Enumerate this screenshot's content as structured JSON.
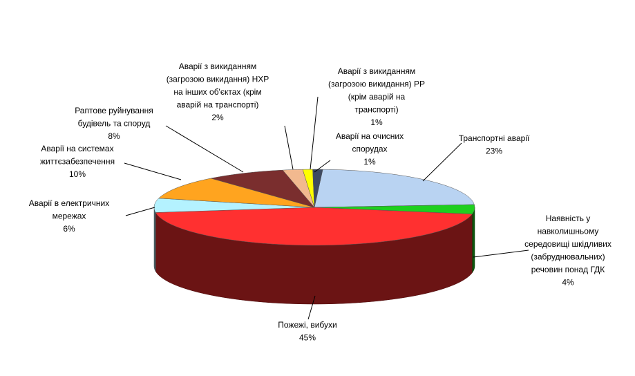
{
  "chart_data": {
    "type": "pie",
    "style": "3d",
    "categories": [
      "Транспортні аварії",
      "Наявність у\nнавколишньому\nсередовищі шкідливих\n(забруднювальних)\nречовин понад ГДК",
      "Пожежі, вибухи",
      "Аварії в електричних\nмережах",
      "Аварії на системах\nжиттєзабезпечення",
      "Раптове руйнування\nбудівель та споруд",
      "Аварії з викиданням\n(загрозою викидання) НХР\nна інших об'єктах (крім\nаварій на транспорті)",
      "Аварії з викиданням\n(загрозою викидання) РР\n(крім  аварій на\nтранспорті)",
      "Аварії на очисних\nспорудах"
    ],
    "values": [
      23,
      4,
      45,
      6,
      10,
      8,
      2,
      1,
      1
    ],
    "value_labels": [
      "23%",
      "4%",
      "45%",
      "6%",
      "10%",
      "8%",
      "2%",
      "1%",
      "1%"
    ],
    "colors": [
      "#b9d3f2",
      "#1ecf1e",
      "#ff3030",
      "#b4f2ff",
      "#ffa41f",
      "#7a2e2e",
      "#f2b98f",
      "#ffff00",
      "#3e4a62"
    ]
  }
}
